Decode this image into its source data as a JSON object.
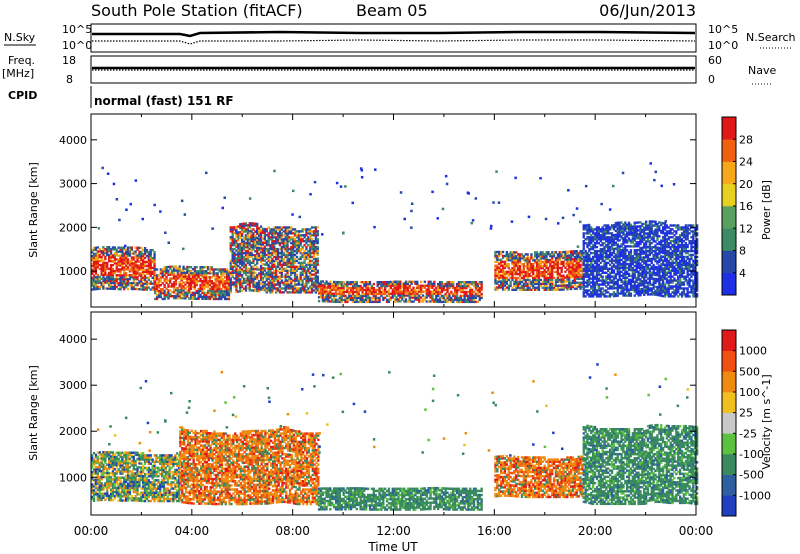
{
  "header": {
    "station": "South Pole Station (fitACF)",
    "beam": "Beam 05",
    "date": "06/Jun/2013"
  },
  "summary": {
    "nsky_label": "N.Sky",
    "nsearch_label": "N.Search",
    "freq_label": "Freq.",
    "freq_unit": "[MHz]",
    "nave_label": "Nave",
    "cpid_label": "CPID",
    "cpid_text": "normal (fast) 151 RF",
    "noise_ticks_top": "10^5",
    "noise_ticks_bottom": "10^0",
    "freq_ticks": [
      "18",
      "8"
    ],
    "nave_ticks": [
      "60",
      "0"
    ]
  },
  "chart_data": [
    {
      "type": "heatmap",
      "panel": "power",
      "xlabel": "",
      "ylabel": "Slant Range [km]",
      "yticks": [
        1000,
        2000,
        3000,
        4000
      ],
      "ylim": [
        180,
        4590
      ],
      "xlim_hours": [
        0,
        24
      ],
      "colorbar_label": "Power [dB]",
      "colorbar_ticks": [
        4,
        8,
        12,
        16,
        20,
        24,
        28
      ],
      "colorbar_colors": [
        "#1e2fe6",
        "#2848a8",
        "#3e8a66",
        "#58a060",
        "#e8d020",
        "#f6a81a",
        "#f06010",
        "#e01818"
      ],
      "regions": [
        {
          "t0": 0.0,
          "t1": 2.5,
          "r0": 500,
          "r1": 1700,
          "level": "high"
        },
        {
          "t0": 2.5,
          "t1": 5.5,
          "r0": 300,
          "r1": 1200,
          "level": "high"
        },
        {
          "t0": 5.5,
          "t1": 9.0,
          "r0": 400,
          "r1": 2300,
          "level": "mid"
        },
        {
          "t0": 9.0,
          "t1": 15.5,
          "r0": 250,
          "r1": 850,
          "level": "high"
        },
        {
          "t0": 16.0,
          "t1": 19.5,
          "r0": 500,
          "r1": 1600,
          "level": "high"
        },
        {
          "t0": 19.5,
          "t1": 24.0,
          "r0": 300,
          "r1": 2400,
          "level": "low"
        }
      ]
    },
    {
      "type": "heatmap",
      "panel": "velocity",
      "xlabel": "Time UT",
      "ylabel": "Slant Range [km]",
      "yticks": [
        1000,
        2000,
        3000,
        4000
      ],
      "ylim": [
        180,
        4590
      ],
      "xticks": [
        "00:00",
        "04:00",
        "08:00",
        "12:00",
        "16:00",
        "20:00",
        "00:00"
      ],
      "colorbar_label": "Velocity [m s^-1]",
      "colorbar_ticks": [
        "1000",
        "500",
        "100",
        "25",
        "-25",
        "-100",
        "-500",
        "-1000"
      ],
      "colorbar_colors": [
        "#2040c0",
        "#2f5fa0",
        "#3a8a60",
        "#5cc040",
        "#c8c8c8",
        "#f0c020",
        "#f08a10",
        "#f05010",
        "#e01a1a"
      ],
      "regions": [
        {
          "t0": 0.0,
          "t1": 3.5,
          "r0": 400,
          "r1": 1700,
          "level": "mixed"
        },
        {
          "t0": 3.5,
          "t1": 9.0,
          "r0": 300,
          "r1": 2300,
          "level": "orange"
        },
        {
          "t0": 9.0,
          "t1": 15.5,
          "r0": 250,
          "r1": 850,
          "level": "green"
        },
        {
          "t0": 16.0,
          "t1": 19.5,
          "r0": 500,
          "r1": 1600,
          "level": "orange"
        },
        {
          "t0": 19.5,
          "t1": 24.0,
          "r0": 300,
          "r1": 2400,
          "level": "green"
        }
      ]
    }
  ]
}
